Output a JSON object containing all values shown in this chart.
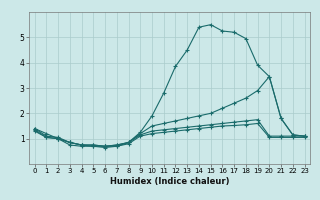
{
  "xlabel": "Humidex (Indice chaleur)",
  "bg_color": "#cce8e8",
  "grid_color": "#aacccc",
  "line_color": "#1a6b6b",
  "xlim": [
    -0.5,
    23.5
  ],
  "ylim": [
    0,
    6
  ],
  "xticks": [
    0,
    1,
    2,
    3,
    4,
    5,
    6,
    7,
    8,
    9,
    10,
    11,
    12,
    13,
    14,
    15,
    16,
    17,
    18,
    19,
    20,
    21,
    22,
    23
  ],
  "yticks": [
    1,
    2,
    3,
    4,
    5
  ],
  "line1_x": [
    0,
    1,
    2,
    3,
    4,
    5,
    6,
    7,
    8,
    9,
    10,
    11,
    12,
    13,
    14,
    15,
    16,
    17,
    18,
    19,
    20,
    21,
    22,
    23
  ],
  "line1_y": [
    1.4,
    1.2,
    1.0,
    0.75,
    0.7,
    0.7,
    0.65,
    0.7,
    0.85,
    1.25,
    1.9,
    2.8,
    3.85,
    4.5,
    5.4,
    5.5,
    5.25,
    5.2,
    4.95,
    3.9,
    3.45,
    1.8,
    1.15,
    1.1
  ],
  "line2_x": [
    0,
    1,
    2,
    3,
    4,
    5,
    6,
    7,
    8,
    9,
    10,
    11,
    12,
    13,
    14,
    15,
    16,
    17,
    18,
    19,
    20,
    21,
    22,
    23
  ],
  "line2_y": [
    1.4,
    1.1,
    1.05,
    0.85,
    0.75,
    0.75,
    0.7,
    0.75,
    0.85,
    1.2,
    1.5,
    1.6,
    1.7,
    1.8,
    1.9,
    2.0,
    2.2,
    2.4,
    2.6,
    2.9,
    3.45,
    1.8,
    1.15,
    1.1
  ],
  "line3_x": [
    0,
    1,
    2,
    3,
    4,
    5,
    6,
    7,
    8,
    9,
    10,
    11,
    12,
    13,
    14,
    15,
    16,
    17,
    18,
    19,
    20,
    21,
    22,
    23
  ],
  "line3_y": [
    1.35,
    1.05,
    1.0,
    0.85,
    0.75,
    0.75,
    0.7,
    0.75,
    0.85,
    1.15,
    1.3,
    1.35,
    1.4,
    1.45,
    1.5,
    1.55,
    1.6,
    1.65,
    1.7,
    1.75,
    1.1,
    1.1,
    1.1,
    1.1
  ],
  "line4_x": [
    0,
    1,
    2,
    3,
    4,
    5,
    6,
    7,
    8,
    9,
    10,
    11,
    12,
    13,
    14,
    15,
    16,
    17,
    18,
    19,
    20,
    21,
    22,
    23
  ],
  "line4_y": [
    1.3,
    1.05,
    1.0,
    0.85,
    0.75,
    0.7,
    0.7,
    0.7,
    0.8,
    1.1,
    1.2,
    1.25,
    1.3,
    1.35,
    1.4,
    1.45,
    1.5,
    1.52,
    1.55,
    1.6,
    1.05,
    1.05,
    1.05,
    1.05
  ]
}
